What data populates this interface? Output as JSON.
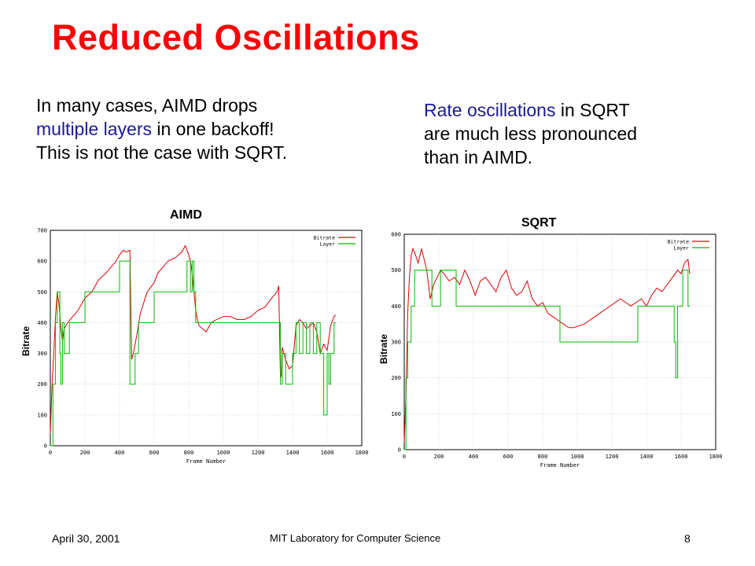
{
  "slide": {
    "title": "Reduced Oscillations",
    "left_text": {
      "line1": "In many cases, AIMD drops",
      "line2_highlight": "multiple layers",
      "line2_rest": " in one backoff!",
      "line3": "This is not the case with SQRT."
    },
    "right_text": {
      "line1_highlight": "Rate oscillations",
      "line1_rest": " in SQRT",
      "line2": "are much less pronounced",
      "line3": "than in AIMD."
    },
    "footer": {
      "date": "April 30, 2001",
      "lab": "MIT Laboratory for Computer Science",
      "page": "8"
    }
  },
  "colors": {
    "title": "#ff0000",
    "highlight": "#1a1a99",
    "bitrate": "#dd0000",
    "layer": "#00bb00"
  },
  "chart_data": [
    {
      "type": "line",
      "title": "AIMD",
      "xlabel": "Frame Number",
      "ylabel": "Bitrate",
      "xlim": [
        0,
        1800
      ],
      "ylim": [
        0,
        700
      ],
      "xticks": [
        0,
        200,
        400,
        600,
        800,
        1000,
        1200,
        1400,
        1600,
        1800
      ],
      "yticks": [
        0,
        100,
        200,
        300,
        400,
        500,
        600,
        700
      ],
      "grid": true,
      "legend": "top-right",
      "series": [
        {
          "name": "Bitrate",
          "x": [
            0,
            10,
            20,
            30,
            40,
            50,
            60,
            70,
            80,
            100,
            130,
            160,
            200,
            240,
            280,
            320,
            350,
            380,
            400,
            420,
            440,
            460,
            470,
            480,
            490,
            500,
            520,
            560,
            600,
            620,
            650,
            680,
            720,
            760,
            780,
            800,
            810,
            820,
            830,
            840,
            850,
            860,
            880,
            900,
            930,
            960,
            1000,
            1040,
            1080,
            1120,
            1160,
            1200,
            1240,
            1280,
            1310,
            1320,
            1330,
            1335,
            1340,
            1360,
            1380,
            1400,
            1420,
            1440,
            1460,
            1480,
            1500,
            1520,
            1540,
            1560,
            1580,
            1600,
            1620,
            1640,
            1650
          ],
          "values": [
            40,
            200,
            300,
            420,
            500,
            460,
            390,
            340,
            380,
            400,
            420,
            440,
            480,
            500,
            540,
            560,
            580,
            600,
            620,
            635,
            630,
            635,
            280,
            300,
            330,
            360,
            430,
            500,
            530,
            560,
            580,
            600,
            610,
            630,
            650,
            620,
            600,
            560,
            500,
            440,
            410,
            390,
            380,
            370,
            400,
            410,
            420,
            420,
            410,
            410,
            420,
            440,
            450,
            480,
            500,
            520,
            220,
            230,
            320,
            280,
            250,
            260,
            390,
            410,
            400,
            380,
            390,
            400,
            370,
            300,
            330,
            310,
            390,
            420,
            425
          ]
        },
        {
          "name": "Layer",
          "x": [
            0,
            15,
            30,
            40,
            55,
            60,
            70,
            80,
            90,
            110,
            120,
            200,
            210,
            400,
            410,
            450,
            460,
            480,
            490,
            500,
            510,
            560,
            600,
            700,
            790,
            800,
            810,
            820,
            830,
            840,
            850,
            900,
            1000,
            1100,
            1200,
            1300,
            1320,
            1330,
            1340,
            1360,
            1400,
            1420,
            1440,
            1460,
            1480,
            1500,
            1520,
            1540,
            1560,
            1580,
            1600,
            1610,
            1620,
            1640,
            1650
          ],
          "values": [
            0,
            200,
            400,
            500,
            300,
            200,
            400,
            300,
            300,
            400,
            400,
            500,
            500,
            600,
            600,
            600,
            200,
            200,
            300,
            300,
            400,
            400,
            500,
            500,
            600,
            600,
            500,
            600,
            500,
            400,
            400,
            400,
            400,
            400,
            400,
            400,
            400,
            200,
            300,
            200,
            300,
            400,
            300,
            400,
            300,
            400,
            300,
            400,
            300,
            100,
            300,
            200,
            300,
            400,
            400
          ]
        }
      ]
    },
    {
      "type": "line",
      "title": "SQRT",
      "xlabel": "Frame Number",
      "ylabel": "Bitrate",
      "xlim": [
        0,
        1800
      ],
      "ylim": [
        0,
        600
      ],
      "xticks": [
        0,
        200,
        400,
        600,
        800,
        1000,
        1200,
        1400,
        1600,
        1800
      ],
      "yticks": [
        0,
        100,
        200,
        300,
        400,
        500,
        600
      ],
      "grid": true,
      "legend": "top-right",
      "series": [
        {
          "name": "Bitrate",
          "x": [
            0,
            10,
            20,
            30,
            40,
            50,
            60,
            80,
            100,
            130,
            150,
            170,
            190,
            210,
            230,
            260,
            290,
            320,
            350,
            380,
            410,
            440,
            470,
            500,
            530,
            560,
            590,
            620,
            650,
            680,
            710,
            740,
            770,
            800,
            830,
            860,
            890,
            920,
            950,
            980,
            1010,
            1040,
            1070,
            1100,
            1130,
            1160,
            1190,
            1220,
            1250,
            1280,
            1310,
            1340,
            1370,
            1400,
            1430,
            1460,
            1490,
            1520,
            1550,
            1580,
            1600,
            1620,
            1640,
            1650
          ],
          "values": [
            20,
            150,
            380,
            480,
            540,
            560,
            550,
            520,
            560,
            500,
            420,
            460,
            480,
            500,
            490,
            470,
            480,
            460,
            500,
            470,
            430,
            470,
            480,
            460,
            440,
            480,
            500,
            450,
            430,
            440,
            470,
            420,
            400,
            410,
            380,
            370,
            360,
            350,
            340,
            340,
            345,
            350,
            360,
            370,
            380,
            390,
            400,
            410,
            420,
            410,
            400,
            410,
            420,
            400,
            430,
            450,
            440,
            460,
            480,
            500,
            490,
            520,
            530,
            490
          ]
        },
        {
          "name": "Layer",
          "x": [
            0,
            10,
            20,
            40,
            60,
            150,
            160,
            200,
            210,
            300,
            400,
            500,
            600,
            700,
            800,
            900,
            1000,
            1100,
            1200,
            1300,
            1350,
            1400,
            1450,
            1500,
            1550,
            1560,
            1570,
            1580,
            1600,
            1610,
            1620,
            1640,
            1650
          ],
          "values": [
            0,
            200,
            300,
            400,
            500,
            500,
            400,
            400,
            500,
            400,
            400,
            400,
            400,
            400,
            400,
            300,
            300,
            300,
            300,
            300,
            400,
            400,
            400,
            400,
            400,
            300,
            200,
            400,
            400,
            500,
            500,
            400,
            400
          ]
        }
      ]
    }
  ]
}
